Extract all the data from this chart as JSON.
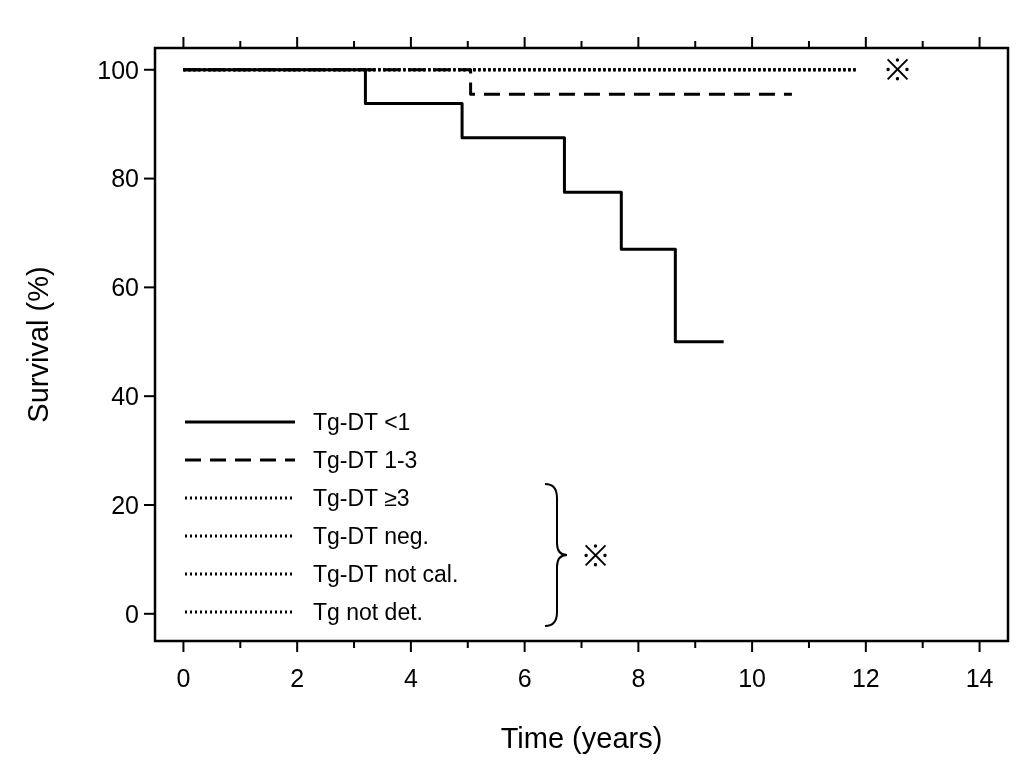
{
  "chart_data": {
    "type": "step",
    "xlabel": "Time (years)",
    "ylabel": "Survival (%)",
    "xlim": [
      -0.5,
      14.5
    ],
    "xticks": [
      0,
      {
        "value": 1,
        "label": null
      },
      2,
      {
        "value": 3,
        "label": null
      },
      4,
      {
        "value": 5,
        "label": null
      },
      6,
      {
        "value": 7,
        "label": null
      },
      8,
      {
        "value": 9,
        "label": null
      },
      10,
      {
        "value": 11,
        "label": null
      },
      12,
      {
        "value": 13,
        "label": null
      },
      14
    ],
    "ylim": [
      -5,
      104
    ],
    "yticks": [
      0,
      20,
      40,
      60,
      80,
      100
    ],
    "grid": false,
    "legend": "bottom left",
    "series": [
      {
        "name": "Tg-DT <1",
        "color": "#000000",
        "line_style": "solid",
        "x": [
          0,
          3.2,
          4.9,
          6.7,
          7.7,
          8.65,
          9.5
        ],
        "values": [
          100,
          93.8,
          87.5,
          77.5,
          67,
          50,
          50
        ]
      },
      {
        "name": "Tg-DT 1-3",
        "color": "#000000",
        "line_style": "dashed",
        "x": [
          0,
          5.05,
          10.7
        ],
        "values": [
          100,
          95.5,
          95.5
        ]
      },
      {
        "name": "Tg-DT ≥3",
        "color": "#000000",
        "line_style": "dotted",
        "x": [
          0,
          11.85
        ],
        "values": [
          100,
          100
        ]
      },
      {
        "name": "Tg-DT neg.",
        "color": "#000000",
        "line_style": "dotted",
        "x": [
          0,
          11.85
        ],
        "values": [
          100,
          100
        ]
      },
      {
        "name": "Tg-DT not cal.",
        "color": "#000000",
        "line_style": "dotted",
        "x": [
          0,
          11.85
        ],
        "values": [
          100,
          100
        ]
      },
      {
        "name": "Tg not det.",
        "color": "#000000",
        "line_style": "dotted",
        "x": [
          0,
          11.85
        ],
        "values": [
          100,
          100
        ]
      }
    ],
    "annotations": [
      "※",
      "※"
    ]
  }
}
